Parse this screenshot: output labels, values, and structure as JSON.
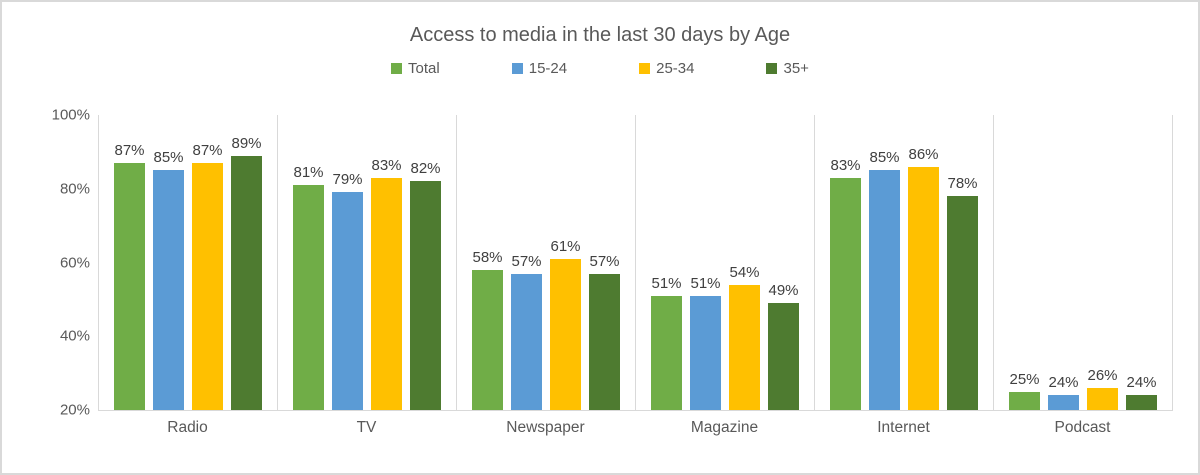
{
  "chart_data": {
    "type": "bar",
    "title": "Access to media in the last 30 days by Age",
    "xlabel": "",
    "ylabel": "",
    "categories": [
      "Radio",
      "TV",
      "Newspaper",
      "Magazine",
      "Internet",
      "Podcast"
    ],
    "series": [
      {
        "name": "Total",
        "color": "#70AD47",
        "values": [
          87,
          81,
          58,
          51,
          83,
          25
        ]
      },
      {
        "name": "15-24",
        "color": "#5B9BD5",
        "values": [
          85,
          79,
          57,
          51,
          85,
          24
        ]
      },
      {
        "name": "25-34",
        "color": "#FFC000",
        "values": [
          87,
          83,
          61,
          54,
          86,
          26
        ]
      },
      {
        "name": "35+",
        "color": "#4E7B30",
        "values": [
          89,
          82,
          57,
          49,
          78,
          24
        ]
      }
    ],
    "value_suffix": "%",
    "ylim": [
      20,
      100
    ],
    "yticks": [
      100,
      80,
      60,
      40,
      20
    ],
    "grid": "vertical-category-separators-only",
    "legend_position": "top",
    "labels": "above-bars"
  }
}
